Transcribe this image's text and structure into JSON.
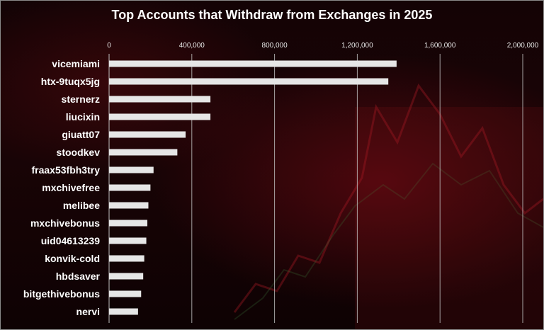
{
  "chart_data": {
    "type": "bar",
    "orientation": "horizontal",
    "title": "Top Accounts that Withdraw from Exchanges in 2025",
    "categories": [
      "vicemiami",
      "htx-9tuqx5jg",
      "sternerz",
      "liucixin",
      "giuatt07",
      "stoodkev",
      "fraax53fbh3try",
      "mxchivefree",
      "melibee",
      "mxchivebonus",
      "uid04613239",
      "konvik-cold",
      "hbdsaver",
      "bitgethivebonus",
      "nervi"
    ],
    "values": [
      1390000,
      1350000,
      490000,
      490000,
      370000,
      330000,
      215000,
      200000,
      190000,
      185000,
      180000,
      170000,
      165000,
      155000,
      140000
    ],
    "xlim": [
      0,
      2000000
    ],
    "x_ticks": [
      "0",
      "400,000",
      "800,000",
      "1,200,000",
      "1,600,000",
      "2,000,000"
    ],
    "x_tick_values": [
      0,
      400000,
      800000,
      1200000,
      1600000,
      2000000
    ],
    "x_axis_position": "top",
    "grid": true,
    "bar_color": "#e6e6e6",
    "grid_color": "#bfbfbf"
  }
}
